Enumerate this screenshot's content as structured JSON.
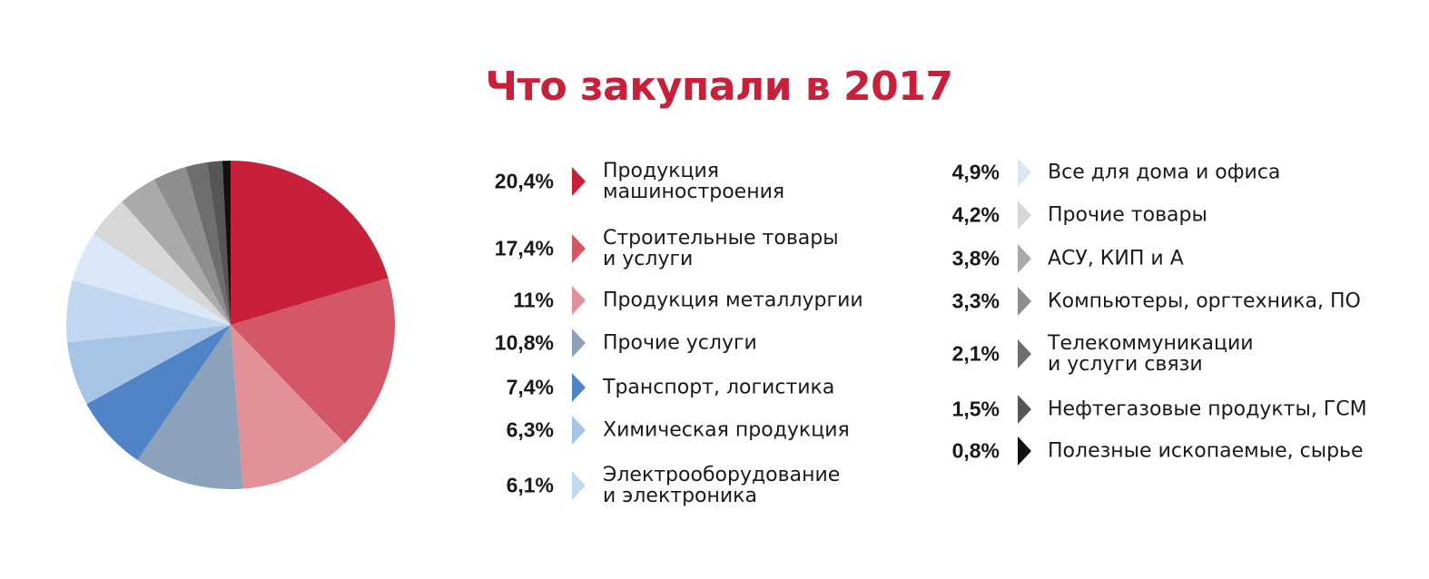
{
  "chart_data": {
    "type": "pie",
    "title": "Что закупали в 2017",
    "slices": [
      {
        "label": "Продукция\nмашиностроения",
        "value": 20.4,
        "display": "20,4%",
        "color": "#c8203a"
      },
      {
        "label": "Строительные товары\nи услуги",
        "value": 17.4,
        "display": "17,4%",
        "color": "#d35766"
      },
      {
        "label": "Продукция металлургии",
        "value": 11,
        "display": "11%",
        "color": "#e29199"
      },
      {
        "label": "Прочие услуги",
        "value": 10.8,
        "display": "10,8%",
        "color": "#8ba2ba"
      },
      {
        "label": "Транспорт, логистика",
        "value": 7.4,
        "display": "7,4%",
        "color": "#5184c6"
      },
      {
        "label": "Химическая продукция",
        "value": 6.3,
        "display": "6,3%",
        "color": "#a6c5e6"
      },
      {
        "label": "Электрооборудование\nи электроника",
        "value": 6.1,
        "display": "6,1%",
        "color": "#c2d8f0"
      },
      {
        "label": "Все для дома и офиса",
        "value": 4.9,
        "display": "4,9%",
        "color": "#d9e7f6"
      },
      {
        "label": "Прочие товары",
        "value": 4.2,
        "display": "4,2%",
        "color": "#d7d7d7"
      },
      {
        "label": "АСУ, КИП и А",
        "value": 3.8,
        "display": "3,8%",
        "color": "#aaaaaa"
      },
      {
        "label": "Компьютеры, оргтехника, ПО",
        "value": 3.3,
        "display": "3,3%",
        "color": "#8e8e8e"
      },
      {
        "label": "Телекоммуникации\nи услуги связи",
        "value": 2.1,
        "display": "2,1%",
        "color": "#6e6e6e"
      },
      {
        "label": "Нефтегазовые продукты, ГСМ",
        "value": 1.5,
        "display": "1,5%",
        "color": "#565656"
      },
      {
        "label": "Полезные ископаемые, сырье",
        "value": 0.8,
        "display": "0,8%",
        "color": "#111111"
      }
    ],
    "legend_position": "right"
  }
}
